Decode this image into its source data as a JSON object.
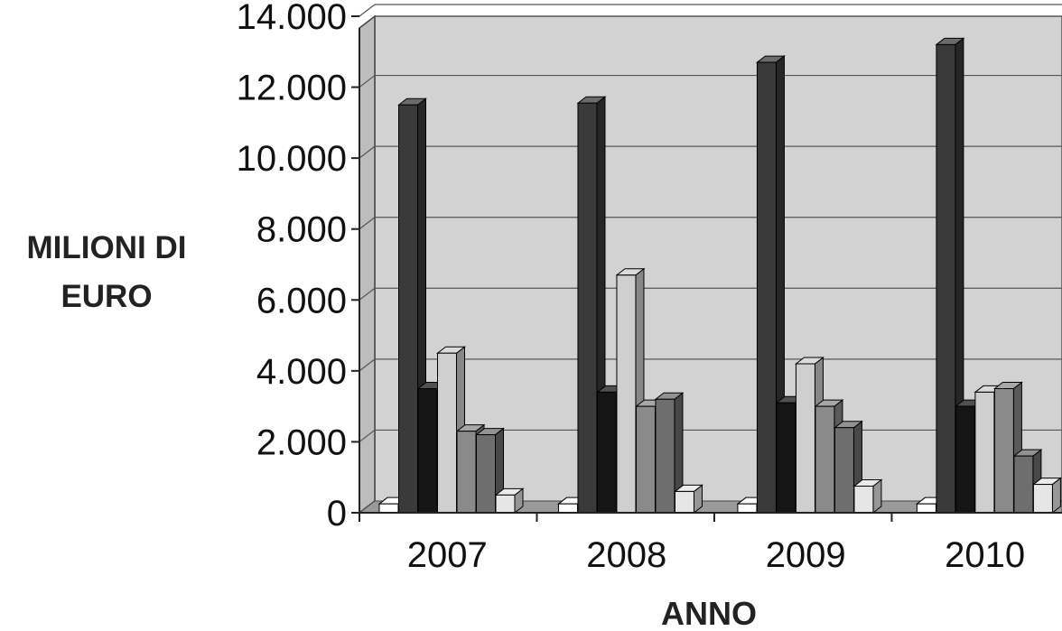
{
  "chart_data": {
    "type": "bar",
    "ylabel_lines": [
      "MILIONI DI",
      "EURO"
    ],
    "xlabel": "ANNO",
    "categories": [
      "2007",
      "2008",
      "2009",
      "2010"
    ],
    "ylim": [
      0,
      14000
    ],
    "y_ticks": [
      "0",
      "2.000",
      "4.000",
      "6.000",
      "8.000",
      "10.000",
      "12.000",
      "14.000"
    ],
    "y_tick_values": [
      0,
      2000,
      4000,
      6000,
      8000,
      10000,
      12000,
      14000
    ],
    "grid": true,
    "style": "3d-clustered-bar",
    "series": [
      {
        "values": [
          250,
          250,
          250,
          250
        ],
        "color": "#ffffff"
      },
      {
        "values": [
          11500,
          11550,
          12700,
          13200
        ],
        "color": "#3a3a3a"
      },
      {
        "values": [
          3500,
          3400,
          3100,
          3000
        ],
        "color": "#151515"
      },
      {
        "values": [
          4500,
          6700,
          4200,
          3400
        ],
        "color": "#cfcfcf"
      },
      {
        "values": [
          2300,
          3000,
          3000,
          3500
        ],
        "color": "#8a8a8a"
      },
      {
        "values": [
          2200,
          3200,
          2400,
          1600
        ],
        "color": "#6e6e6e"
      },
      {
        "values": [
          500,
          600,
          750,
          800
        ],
        "color": "#e6e6e6"
      }
    ]
  }
}
